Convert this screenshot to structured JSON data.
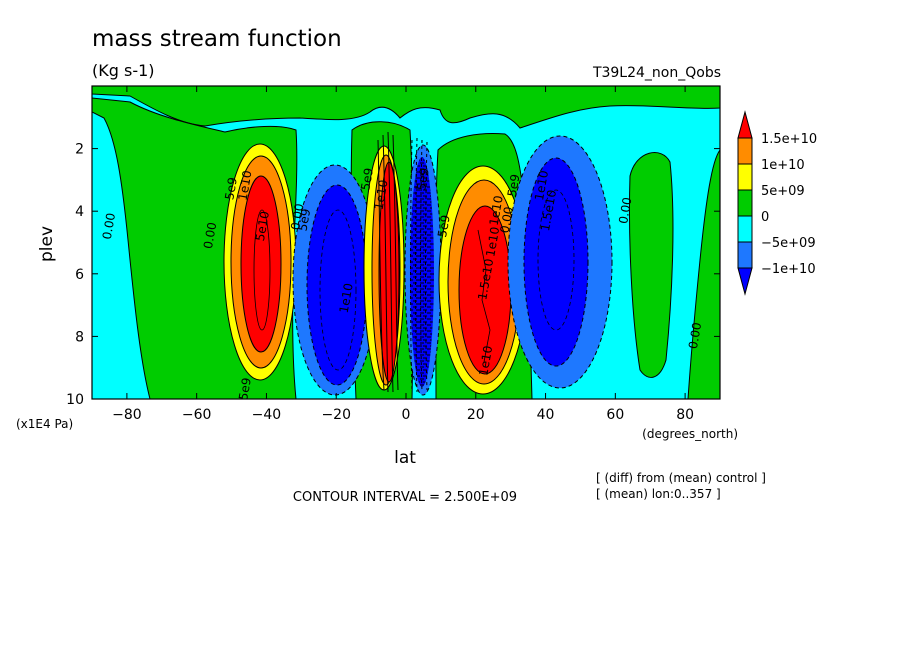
{
  "chart_data": {
    "type": "heatmap",
    "title": "mass stream function",
    "units": "(Kg s-1)",
    "experiment": "T39L24_non_Qobs",
    "xlabel": "lat",
    "x_units": "(degrees_north)",
    "ylabel": "plev",
    "y_units": "(x1E4 Pa)",
    "xlim": [
      -90,
      90
    ],
    "ylim": [
      10,
      0
    ],
    "x_ticks": [
      -80,
      -60,
      -40,
      -20,
      0,
      20,
      40,
      60,
      80
    ],
    "y_ticks": [
      2,
      4,
      6,
      8,
      10
    ],
    "contour_interval_text": "CONTOUR INTERVAL = 2.500E+09",
    "notes": [
      "[ (diff) from (mean) control ]",
      "[ (mean) lon:0..357 ]"
    ],
    "colorbar": {
      "labels": [
        "1.5e+10",
        "1e+10",
        "5e+09",
        "0",
        "-5e+09",
        "-1e+10"
      ],
      "colors": [
        "#ff0000",
        "#ff8c00",
        "#ffff00",
        "#00cc00",
        "#00ffff",
        "#1e78ff",
        "#0000ff"
      ]
    },
    "cells": [
      {
        "lat": -39,
        "plev": 6.2,
        "value": 16000000000.0
      },
      {
        "lat": -20,
        "plev": 6.5,
        "value": -17000000000.0
      },
      {
        "lat": -5,
        "plev": 5.5,
        "value": 20000000000.0
      },
      {
        "lat": 4,
        "plev": 6.0,
        "value": -20000000000.0
      },
      {
        "lat": 22,
        "plev": 7.0,
        "value": 18000000000.0
      },
      {
        "lat": 44,
        "plev": 5.0,
        "value": -15000000000.0
      }
    ],
    "contour_labels": [
      {
        "text": "0.00",
        "lat": -84,
        "plev": 4.5
      },
      {
        "text": "0.00",
        "lat": -55,
        "plev": 4.8
      },
      {
        "text": "5e9",
        "lat": -49,
        "plev": 3.3
      },
      {
        "text": "1e10",
        "lat": -45,
        "plev": 3.2
      },
      {
        "text": "5e10",
        "lat": -40,
        "plev": 4.5
      },
      {
        "text": "5e9",
        "lat": -45,
        "plev": 9.7
      },
      {
        "text": "0.00",
        "lat": -30,
        "plev": 4.2
      },
      {
        "text": "5e9",
        "lat": -28,
        "plev": 4.3
      },
      {
        "text": "1e10",
        "lat": -16,
        "plev": 6.8
      },
      {
        "text": "5e9",
        "lat": -10,
        "plev": 3.0
      },
      {
        "text": "1e10",
        "lat": -6,
        "plev": 3.5
      },
      {
        "text": "5e9",
        "lat": 6,
        "plev": 3.0
      },
      {
        "text": "5e9",
        "lat": 12,
        "plev": 4.5
      },
      {
        "text": "1e10",
        "lat": 27,
        "plev": 4.0
      },
      {
        "text": "1e10",
        "lat": 26,
        "plev": 5.0
      },
      {
        "text": "1.5e10",
        "lat": 24,
        "plev": 6.2
      },
      {
        "text": "1e10",
        "lat": 24,
        "plev": 8.8
      },
      {
        "text": "5e9",
        "lat": 32,
        "plev": 3.2
      },
      {
        "text": "0.00",
        "lat": 30,
        "plev": 4.3
      },
      {
        "text": "1e10",
        "lat": 40,
        "plev": 3.2
      },
      {
        "text": "1.5e10",
        "lat": 42,
        "plev": 4.0
      },
      {
        "text": "0.00",
        "lat": 64,
        "plev": 4.0
      },
      {
        "text": "0.00",
        "lat": 84,
        "plev": 8.0
      }
    ]
  }
}
